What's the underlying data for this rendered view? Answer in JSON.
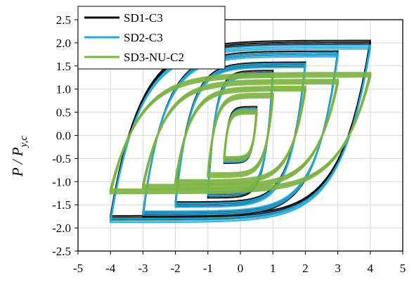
{
  "chart_data": {
    "type": "line",
    "title": "",
    "ylabel_main": "P / P",
    "ylabel_sub": "y,c",
    "xlabel": "",
    "xlim": [
      -5,
      5
    ],
    "ylim": [
      -2.5,
      2.5
    ],
    "xticks": [
      -5,
      -4,
      -3,
      -2,
      -1,
      0,
      1,
      2,
      3,
      4,
      5
    ],
    "yticks": [
      -2.5,
      -2.0,
      -1.5,
      -1.0,
      -0.5,
      0.0,
      0.5,
      1.0,
      1.5,
      2.0,
      2.5
    ],
    "grid": true,
    "legend_position": "top-left",
    "series": [
      {
        "name": "SD1-C3",
        "color": "#000000",
        "loops": [
          {
            "amp": 0.5,
            "posPeak": 0.62,
            "negPeak": -0.6,
            "yield": 0.55,
            "slope": 0.03
          },
          {
            "amp": 1.0,
            "posPeak": 1.4,
            "negPeak": -1.35,
            "yield": 1.0,
            "slope": 0.04
          },
          {
            "amp": 2.0,
            "posPeak": 1.58,
            "negPeak": -1.52,
            "yield": 1.2,
            "slope": 0.05
          },
          {
            "amp": 3.0,
            "posPeak": 1.82,
            "negPeak": -1.75,
            "yield": 1.45,
            "slope": 0.06
          },
          {
            "amp": 4.0,
            "posPeak": 2.05,
            "negPeak": -1.82,
            "yield": 1.6,
            "slope": 0.07
          }
        ]
      },
      {
        "name": "SD2-C3",
        "color": "#22aadd",
        "loops": [
          {
            "amp": 0.5,
            "posPeak": 0.58,
            "negPeak": -0.58,
            "yield": 0.5,
            "slope": 0.03
          },
          {
            "amp": 1.0,
            "posPeak": 1.35,
            "negPeak": -1.3,
            "yield": 0.95,
            "slope": 0.04
          },
          {
            "amp": 2.0,
            "posPeak": 1.55,
            "negPeak": -1.55,
            "yield": 1.18,
            "slope": 0.05
          },
          {
            "amp": 3.0,
            "posPeak": 1.78,
            "negPeak": -1.72,
            "yield": 1.42,
            "slope": 0.06
          },
          {
            "amp": 4.0,
            "posPeak": 1.95,
            "negPeak": -1.88,
            "yield": 1.55,
            "slope": 0.07
          }
        ]
      },
      {
        "name": "SD3-NU-C2",
        "color": "#7cb342",
        "loops": [
          {
            "amp": 0.5,
            "posPeak": 0.55,
            "negPeak": -0.55,
            "yield": 0.45,
            "slope": 0.02
          },
          {
            "amp": 1.0,
            "posPeak": 0.9,
            "negPeak": -0.9,
            "yield": 0.75,
            "slope": 0.02
          },
          {
            "amp": 2.0,
            "posPeak": 1.05,
            "negPeak": -1.05,
            "yield": 0.9,
            "slope": 0.03
          },
          {
            "amp": 3.0,
            "posPeak": 1.2,
            "negPeak": -1.15,
            "yield": 1.0,
            "slope": 0.03
          },
          {
            "amp": 4.0,
            "posPeak": 1.35,
            "negPeak": -1.25,
            "yield": 1.05,
            "slope": 0.03
          }
        ]
      }
    ]
  }
}
